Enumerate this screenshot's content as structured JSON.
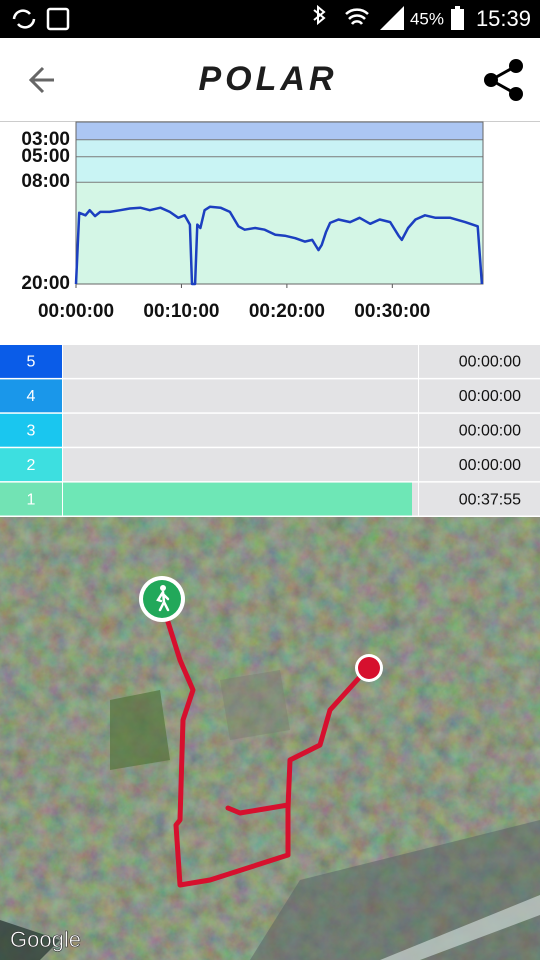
{
  "status_bar": {
    "battery": "45%",
    "time": "15:39"
  },
  "header": {
    "logo": "POLAR"
  },
  "chart_data": {
    "type": "line",
    "x": [
      0,
      0.3,
      0.9,
      1.3,
      1.8,
      2.3,
      3.2,
      4.2,
      5.1,
      6.1,
      7.0,
      8.0,
      8.9,
      9.7,
      10.3,
      10.8,
      11.0,
      11.3,
      11.5,
      11.8,
      12.2,
      12.7,
      13.7,
      14.6,
      15.4,
      16.0,
      17.0,
      17.9,
      18.9,
      19.8,
      20.8,
      21.7,
      22.4,
      23.0,
      23.3,
      23.7,
      24.1,
      24.9,
      26.0,
      26.9,
      27.9,
      28.8,
      29.8,
      30.6,
      30.9,
      31.5,
      32.2,
      33.1,
      34.1,
      35.5,
      36.9,
      38.1,
      38.5
    ],
    "series": [
      {
        "color": "#1c3fc0",
        "values": [
          20,
          11.6,
          11.9,
          11.3,
          12.0,
          11.5,
          11.5,
          11.3,
          11.1,
          11.0,
          11.3,
          11.0,
          11.5,
          12.2,
          11.9,
          13.0,
          20,
          20,
          13.0,
          13.4,
          11.3,
          10.9,
          11.0,
          11.5,
          13.2,
          13.6,
          13.4,
          13.6,
          14.2,
          14.3,
          14.6,
          15.0,
          14.8,
          16.0,
          15.4,
          13.9,
          12.8,
          12.4,
          12.7,
          12.2,
          12.9,
          12.4,
          12.7,
          14.3,
          14.8,
          13.4,
          12.4,
          11.9,
          12.2,
          12.2,
          12.7,
          13.2,
          20
        ]
      }
    ],
    "xlim": [
      0,
      38.6
    ],
    "ylim": [
      20,
      0.9
    ],
    "xticks": [
      {
        "value": 0,
        "label": "00:00:00"
      },
      {
        "value": 10,
        "label": "00:10:00"
      },
      {
        "value": 20,
        "label": "00:20:00"
      },
      {
        "value": 30,
        "label": "00:30:00"
      }
    ],
    "yticks": [
      {
        "value": 3,
        "label": "03:00"
      },
      {
        "value": 5,
        "label": "05:00"
      },
      {
        "value": 8,
        "label": "08:00"
      },
      {
        "value": 20,
        "label": "20:00"
      }
    ],
    "band_colors": [
      "#acc6f3",
      "#c9f2f5",
      "#c9f4f4",
      "#d4f6e6"
    ],
    "grid": true
  },
  "zones": {
    "bar_color": "#6ee7b6",
    "rows": [
      {
        "label": "5",
        "color": "#0a5ce8",
        "time": "00:00:00",
        "seconds": 0
      },
      {
        "label": "4",
        "color": "#1a97ea",
        "time": "00:00:00",
        "seconds": 0
      },
      {
        "label": "3",
        "color": "#1ac6ef",
        "time": "00:00:00",
        "seconds": 0
      },
      {
        "label": "2",
        "color": "#3ddfe0",
        "time": "00:00:00",
        "seconds": 0
      },
      {
        "label": "1",
        "color": "#72e3b4",
        "time": "00:37:55",
        "seconds": 2275
      }
    ]
  },
  "map": {
    "attribution": "Google"
  }
}
